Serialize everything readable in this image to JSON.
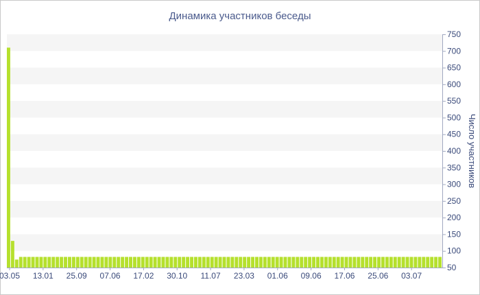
{
  "chart_data": {
    "type": "bar",
    "title": "Динамика участников беседы",
    "ylabel": "Число участников",
    "xlabel": "",
    "y_axis_position": "right",
    "ylim": [
      50,
      750
    ],
    "y_ticks": [
      50,
      100,
      150,
      200,
      250,
      300,
      350,
      400,
      450,
      500,
      550,
      600,
      650,
      700,
      750
    ],
    "x_tick_labels": [
      "03.05",
      "13.01",
      "25.09",
      "07.06",
      "17.02",
      "30.10",
      "11.07",
      "23.03",
      "01.06",
      "09.06",
      "17.06",
      "25.06",
      "03.07"
    ],
    "grid": "horizontal alternating bands",
    "bar_color": "#b5e02d",
    "band_color": "#f5f5f5",
    "values": [
      710,
      130,
      74,
      82,
      82,
      82,
      82,
      82,
      82,
      82,
      82,
      82,
      82,
      82,
      82,
      82,
      82,
      82,
      82,
      82,
      82,
      82,
      82,
      82,
      82,
      82,
      82,
      82,
      82,
      82,
      82,
      82,
      82,
      82,
      82,
      82,
      82,
      82,
      82,
      82,
      82,
      82,
      82,
      82,
      82,
      82,
      82,
      82,
      82,
      82,
      82,
      82,
      82,
      82,
      82,
      82,
      82,
      82,
      82,
      82,
      82,
      82,
      82,
      82,
      82,
      82,
      82,
      82,
      82,
      82,
      82,
      82,
      82,
      82,
      82,
      82,
      82,
      82,
      82,
      82,
      82,
      82,
      82,
      82,
      82,
      82,
      82,
      82,
      82,
      82,
      82,
      82,
      82,
      82,
      82,
      82,
      82,
      82,
      82,
      82,
      82,
      82,
      82,
      82,
      82,
      82,
      82
    ]
  }
}
